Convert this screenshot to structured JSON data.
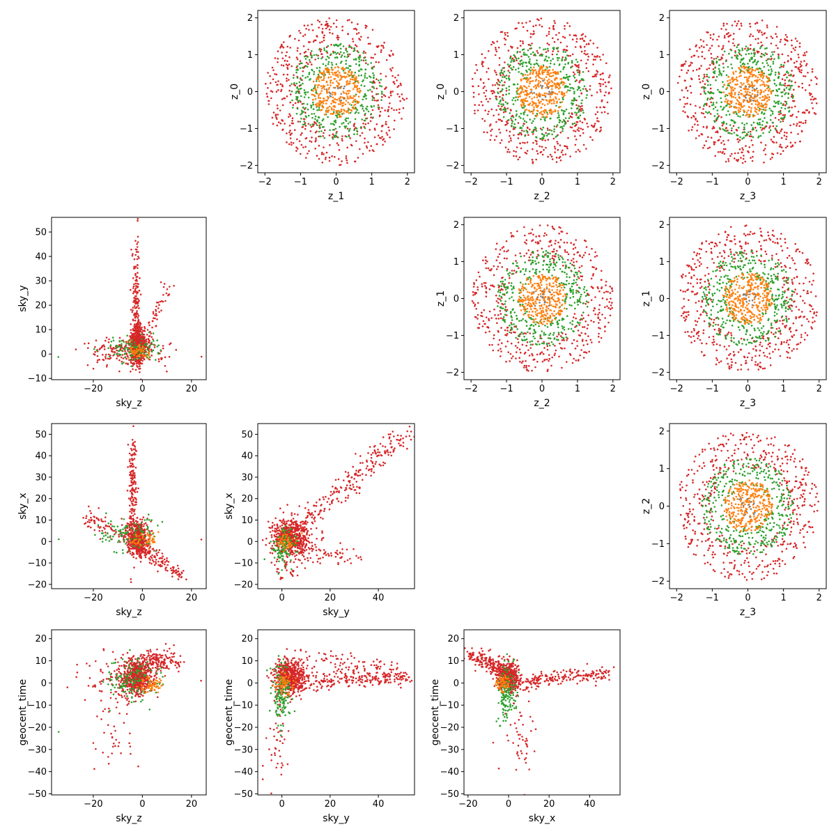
{
  "colors": {
    "red": "#d62728",
    "green": "#2ca02c",
    "orange": "#ff7f0e",
    "grey": "#7f7f7f",
    "axis": "#000000"
  },
  "chart_data": [
    {
      "id": "z0_vs_z1",
      "type": "scatter",
      "kind": "disc",
      "xlabel": "z_1",
      "ylabel": "z_0",
      "xlim": [
        -2.2,
        2.2
      ],
      "ylim": [
        -2.2,
        2.2
      ],
      "xticks": [
        -2,
        -1,
        0,
        1,
        2
      ],
      "yticks": [
        -2,
        -1,
        0,
        1,
        2
      ],
      "layers": [
        {
          "color": "red",
          "rmin": 1.0,
          "rmax": 2.0,
          "n": 520
        },
        {
          "color": "green",
          "rmin": 0.55,
          "rmax": 1.3,
          "n": 380
        },
        {
          "color": "orange",
          "rmin": 0.0,
          "rmax": 0.7,
          "n": 320
        },
        {
          "color": "grey",
          "rmin": 0.0,
          "rmax": 0.3,
          "n": 15
        }
      ]
    },
    {
      "id": "z0_vs_z2",
      "type": "scatter",
      "kind": "disc",
      "xlabel": "z_2",
      "ylabel": "z_0",
      "xlim": [
        -2.2,
        2.2
      ],
      "ylim": [
        -2.2,
        2.2
      ],
      "xticks": [
        -2,
        -1,
        0,
        1,
        2
      ],
      "yticks": [
        -2,
        -1,
        0,
        1,
        2
      ],
      "layers": [
        {
          "color": "red",
          "rmin": 1.0,
          "rmax": 2.0,
          "n": 520
        },
        {
          "color": "green",
          "rmin": 0.55,
          "rmax": 1.3,
          "n": 380
        },
        {
          "color": "orange",
          "rmin": 0.0,
          "rmax": 0.7,
          "n": 320
        },
        {
          "color": "grey",
          "rmin": 0.0,
          "rmax": 0.3,
          "n": 15
        }
      ]
    },
    {
      "id": "z0_vs_z3",
      "type": "scatter",
      "kind": "disc",
      "xlabel": "z_3",
      "ylabel": "z_0",
      "xlim": [
        -2.2,
        2.2
      ],
      "ylim": [
        -2.2,
        2.2
      ],
      "xticks": [
        -2,
        -1,
        0,
        1,
        2
      ],
      "yticks": [
        -2,
        -1,
        0,
        1,
        2
      ],
      "layers": [
        {
          "color": "red",
          "rmin": 1.0,
          "rmax": 2.0,
          "n": 520
        },
        {
          "color": "green",
          "rmin": 0.55,
          "rmax": 1.3,
          "n": 380
        },
        {
          "color": "orange",
          "rmin": 0.0,
          "rmax": 0.7,
          "n": 320
        },
        {
          "color": "grey",
          "rmin": 0.0,
          "rmax": 0.3,
          "n": 15
        }
      ]
    },
    {
      "id": "z1_vs_z2",
      "type": "scatter",
      "kind": "disc",
      "xlabel": "z_2",
      "ylabel": "z_1",
      "xlim": [
        -2.2,
        2.2
      ],
      "ylim": [
        -2.2,
        2.2
      ],
      "xticks": [
        -2,
        -1,
        0,
        1,
        2
      ],
      "yticks": [
        -2,
        -1,
        0,
        1,
        2
      ],
      "layers": [
        {
          "color": "red",
          "rmin": 1.0,
          "rmax": 2.0,
          "n": 520
        },
        {
          "color": "green",
          "rmin": 0.55,
          "rmax": 1.3,
          "n": 380
        },
        {
          "color": "orange",
          "rmin": 0.0,
          "rmax": 0.7,
          "n": 320
        },
        {
          "color": "grey",
          "rmin": 0.0,
          "rmax": 0.3,
          "n": 15
        }
      ]
    },
    {
      "id": "z1_vs_z3",
      "type": "scatter",
      "kind": "disc",
      "xlabel": "z_3",
      "ylabel": "z_1",
      "xlim": [
        -2.2,
        2.2
      ],
      "ylim": [
        -2.2,
        2.2
      ],
      "xticks": [
        -2,
        -1,
        0,
        1,
        2
      ],
      "yticks": [
        -2,
        -1,
        0,
        1,
        2
      ],
      "layers": [
        {
          "color": "red",
          "rmin": 1.0,
          "rmax": 2.0,
          "n": 520
        },
        {
          "color": "green",
          "rmin": 0.55,
          "rmax": 1.3,
          "n": 380
        },
        {
          "color": "orange",
          "rmin": 0.0,
          "rmax": 0.7,
          "n": 320
        },
        {
          "color": "grey",
          "rmin": 0.0,
          "rmax": 0.3,
          "n": 15
        }
      ]
    },
    {
      "id": "z2_vs_z3",
      "type": "scatter",
      "kind": "disc",
      "xlabel": "z_3",
      "ylabel": "z_2",
      "xlim": [
        -2.2,
        2.2
      ],
      "ylim": [
        -2.2,
        2.2
      ],
      "xticks": [
        -2,
        -1,
        0,
        1,
        2
      ],
      "yticks": [
        -2,
        -1,
        0,
        1,
        2
      ],
      "layers": [
        {
          "color": "red",
          "rmin": 1.0,
          "rmax": 2.0,
          "n": 520
        },
        {
          "color": "green",
          "rmin": 0.55,
          "rmax": 1.3,
          "n": 380
        },
        {
          "color": "orange",
          "rmin": 0.0,
          "rmax": 0.7,
          "n": 320
        },
        {
          "color": "grey",
          "rmin": 0.0,
          "rmax": 0.3,
          "n": 15
        }
      ]
    },
    {
      "id": "skyy_vs_skyz",
      "type": "scatter",
      "kind": "clusters",
      "xlabel": "sky_z",
      "ylabel": "sky_y",
      "xlim": [
        -37,
        26
      ],
      "ylim": [
        -10.5,
        56
      ],
      "xticks": [
        -20,
        0,
        20
      ],
      "yticks": [
        -10,
        0,
        10,
        20,
        30,
        40,
        50
      ],
      "clusters": [
        {
          "color": "red",
          "n": 500,
          "cx": -2,
          "cy": 4,
          "sx": 1.5,
          "sy": 4
        },
        {
          "color": "red",
          "n": 160,
          "cx": -2.5,
          "cy": 22,
          "sx": 0.8,
          "sy": 13
        },
        {
          "color": "red",
          "n": 60,
          "x0": 0,
          "y0": 0,
          "x1": 11,
          "y1": 30,
          "jitter": 1.2
        },
        {
          "color": "red",
          "n": 200,
          "cx": -6,
          "cy": 1,
          "sx": 8,
          "sy": 3
        },
        {
          "color": "green",
          "n": 130,
          "cx": -4,
          "cy": 2,
          "sx": 5,
          "sy": 2.5
        },
        {
          "color": "orange",
          "n": 50,
          "cx": -1,
          "cy": 1,
          "sx": 2,
          "sy": 2
        },
        {
          "color": "red",
          "n": 1,
          "cx": 24,
          "cy": -1,
          "sx": 0.1,
          "sy": 0.1
        },
        {
          "color": "green",
          "n": 1,
          "cx": -34,
          "cy": -1,
          "sx": 0.1,
          "sy": 0.1
        }
      ]
    },
    {
      "id": "skyx_vs_skyz",
      "type": "scatter",
      "kind": "clusters",
      "xlabel": "sky_z",
      "ylabel": "sky_x",
      "xlim": [
        -37,
        26
      ],
      "ylim": [
        -22,
        55
      ],
      "xticks": [
        -20,
        0,
        20
      ],
      "yticks": [
        -20,
        -10,
        0,
        10,
        20,
        30,
        40,
        50
      ],
      "clusters": [
        {
          "color": "red",
          "n": 500,
          "cx": -2,
          "cy": 2,
          "sx": 2,
          "sy": 4
        },
        {
          "color": "red",
          "n": 160,
          "cx": -4,
          "cy": 25,
          "sx": 0.9,
          "sy": 14
        },
        {
          "color": "red",
          "n": 140,
          "x0": -2,
          "y0": -2,
          "x1": 15,
          "y1": -15,
          "jitter": 1.8
        },
        {
          "color": "red",
          "n": 100,
          "x0": -24,
          "y0": 12,
          "x1": -2,
          "y1": 0,
          "jitter": 2.5
        },
        {
          "color": "green",
          "n": 110,
          "cx": -6,
          "cy": 3,
          "sx": 6,
          "sy": 4
        },
        {
          "color": "orange",
          "n": 50,
          "cx": 1,
          "cy": 1,
          "sx": 3,
          "sy": 2
        },
        {
          "color": "red",
          "n": 1,
          "cx": 24,
          "cy": 1,
          "sx": 0.1,
          "sy": 0.1
        },
        {
          "color": "green",
          "n": 1,
          "cx": -34,
          "cy": 1,
          "sx": 0.1,
          "sy": 0.1
        }
      ]
    },
    {
      "id": "skyx_vs_skyy",
      "type": "scatter",
      "kind": "clusters",
      "xlabel": "sky_y",
      "ylabel": "sky_x",
      "xlim": [
        -10,
        55
      ],
      "ylim": [
        -22,
        55
      ],
      "xticks": [
        0,
        20,
        40
      ],
      "yticks": [
        -20,
        -10,
        0,
        10,
        20,
        30,
        40,
        50
      ],
      "clusters": [
        {
          "color": "red",
          "n": 550,
          "cx": 4,
          "cy": 2,
          "sx": 4,
          "sy": 4
        },
        {
          "color": "red",
          "n": 260,
          "x0": 5,
          "y0": 5,
          "x1": 52,
          "y1": 51,
          "jitter": 2.5
        },
        {
          "color": "red",
          "n": 70,
          "x0": 2,
          "y0": -3,
          "x1": 30,
          "y1": -8,
          "jitter": 2
        },
        {
          "color": "red",
          "n": 40,
          "cx": 4,
          "cy": -12,
          "sx": 4,
          "sy": 3
        },
        {
          "color": "green",
          "n": 110,
          "cx": 1,
          "cy": -2,
          "sx": 2.5,
          "sy": 4
        },
        {
          "color": "orange",
          "n": 50,
          "cx": 2,
          "cy": 0,
          "sx": 2,
          "sy": 2
        }
      ]
    },
    {
      "id": "gt_vs_skyz",
      "type": "scatter",
      "kind": "clusters",
      "xlabel": "sky_z",
      "ylabel": "geocent_time",
      "xlim": [
        -37,
        26
      ],
      "ylim": [
        -50.5,
        24
      ],
      "xticks": [
        -20,
        0,
        20
      ],
      "yticks": [
        -50,
        -40,
        -30,
        -20,
        -10,
        0,
        10,
        20
      ],
      "clusters": [
        {
          "color": "red",
          "n": 550,
          "cx": -2,
          "cy": 3,
          "sx": 3,
          "sy": 4
        },
        {
          "color": "red",
          "n": 160,
          "cx": 6,
          "cy": 10,
          "sx": 5,
          "sy": 2.5
        },
        {
          "color": "red",
          "n": 100,
          "cx": -10,
          "cy": 2,
          "sx": 7,
          "sy": 5
        },
        {
          "color": "red",
          "n": 40,
          "cx": -12,
          "cy": -25,
          "sx": 5,
          "sy": 10
        },
        {
          "color": "green",
          "n": 140,
          "cx": -4,
          "cy": 1,
          "sx": 5,
          "sy": 5
        },
        {
          "color": "orange",
          "n": 60,
          "cx": 3,
          "cy": -1,
          "sx": 2.5,
          "sy": 2
        },
        {
          "color": "red",
          "n": 1,
          "cx": 24,
          "cy": 1,
          "sx": 0.1,
          "sy": 0.1
        },
        {
          "color": "green",
          "n": 1,
          "cx": -34,
          "cy": -22,
          "sx": 0.1,
          "sy": 0.1
        }
      ]
    },
    {
      "id": "gt_vs_skyy",
      "type": "scatter",
      "kind": "clusters",
      "xlabel": "sky_y",
      "ylabel": "geocent_time",
      "xlim": [
        -10,
        55
      ],
      "ylim": [
        -50.5,
        24
      ],
      "xticks": [
        0,
        20,
        40
      ],
      "yticks": [
        -50,
        -40,
        -30,
        -20,
        -10,
        0,
        10,
        20
      ],
      "clusters": [
        {
          "color": "red",
          "n": 550,
          "cx": 3,
          "cy": 3,
          "sx": 3,
          "sy": 4
        },
        {
          "color": "red",
          "n": 220,
          "x0": 5,
          "y0": 0,
          "x1": 53,
          "y1": 3,
          "jitter": 1.8
        },
        {
          "color": "red",
          "n": 100,
          "x0": 8,
          "y0": 12,
          "x1": 45,
          "y1": 5,
          "jitter": 2.5
        },
        {
          "color": "red",
          "n": 40,
          "cx": -2,
          "cy": -30,
          "sx": 3,
          "sy": 8
        },
        {
          "color": "green",
          "n": 140,
          "cx": 0,
          "cy": -4,
          "sx": 2,
          "sy": 7
        },
        {
          "color": "orange",
          "n": 60,
          "cx": 1,
          "cy": 0,
          "sx": 2,
          "sy": 2
        }
      ]
    },
    {
      "id": "gt_vs_skyx",
      "type": "scatter",
      "kind": "clusters",
      "xlabel": "sky_x",
      "ylabel": "geocent_time",
      "xlim": [
        -22,
        55
      ],
      "ylim": [
        -50.5,
        24
      ],
      "xticks": [
        -20,
        0,
        20,
        40
      ],
      "yticks": [
        -50,
        -40,
        -30,
        -20,
        -10,
        0,
        10,
        20
      ],
      "clusters": [
        {
          "color": "red",
          "n": 450,
          "cx": 0,
          "cy": 3,
          "sx": 2.5,
          "sy": 3
        },
        {
          "color": "red",
          "n": 200,
          "x0": -18,
          "y0": 13,
          "x1": 0,
          "y1": 4,
          "jitter": 2
        },
        {
          "color": "red",
          "n": 200,
          "x0": 4,
          "y0": 0,
          "x1": 50,
          "y1": 5,
          "jitter": 1.6
        },
        {
          "color": "red",
          "n": 50,
          "cx": 6,
          "cy": -25,
          "sx": 4,
          "sy": 10
        },
        {
          "color": "green",
          "n": 140,
          "cx": -1,
          "cy": -4,
          "sx": 2,
          "sy": 6
        },
        {
          "color": "orange",
          "n": 60,
          "cx": -3,
          "cy": 0,
          "sx": 2,
          "sy": 2
        }
      ]
    }
  ]
}
